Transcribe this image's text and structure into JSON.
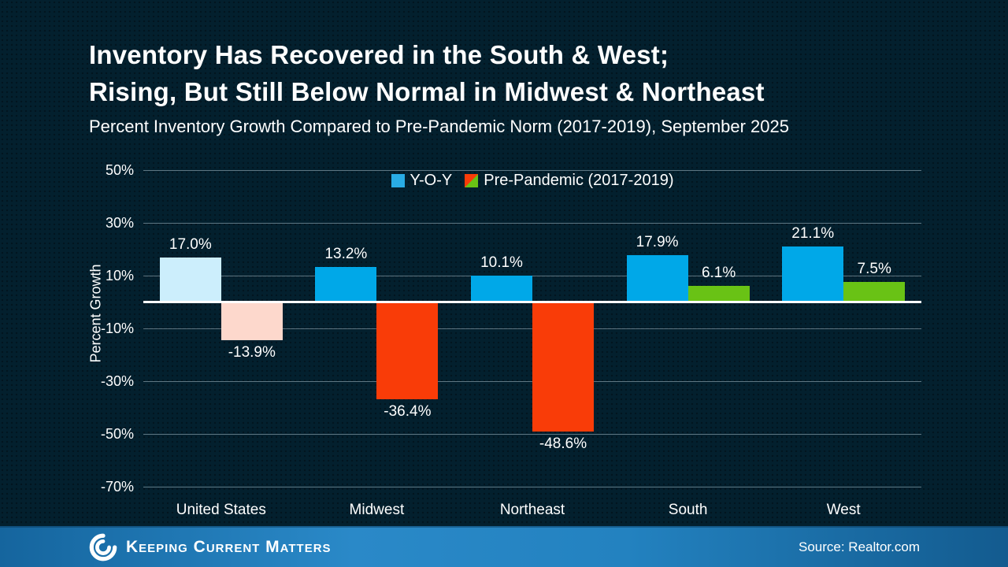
{
  "slide": {
    "title_line1": "Inventory Has Recovered in the South & West;",
    "title_line2": "Rising, But Still Below Normal in Midwest & Northeast",
    "subtitle": "Percent Inventory Growth Compared to Pre-Pandemic Norm (2017-2019), September 2025",
    "brand": "Keeping Current Matters",
    "source": "Source: Realtor.com",
    "background_color": "#03202E",
    "footer_color": "#2382C0"
  },
  "chart_data": {
    "type": "bar",
    "title": "Inventory Has Recovered in the South & West; Rising, But Still Below Normal in Midwest & Northeast",
    "subtitle": "Percent Inventory Growth Compared to Pre-Pandemic Norm (2017-2019), September 2025",
    "categories": [
      "United States",
      "Midwest",
      "Northeast",
      "South",
      "West"
    ],
    "series": [
      {
        "name": "Y-O-Y",
        "values": [
          17.0,
          13.2,
          10.1,
          17.9,
          21.1
        ],
        "labels": [
          "17.0%",
          "13.2%",
          "10.1%",
          "17.9%",
          "21.1%"
        ],
        "colors": [
          "#CCEEFC",
          "#00A8E8",
          "#00A8E8",
          "#00A8E8",
          "#00A8E8"
        ],
        "swatch": {
          "type": "solid",
          "color": "#29ACE5"
        }
      },
      {
        "name": "Pre-Pandemic (2017-2019)",
        "values": [
          -13.9,
          -36.4,
          -48.6,
          6.1,
          7.5
        ],
        "labels": [
          "-13.9%",
          "-36.4%",
          "-48.6%",
          "6.1%",
          "7.5%"
        ],
        "colors": [
          "#FDD8CC",
          "#F93C08",
          "#F93C08",
          "#69C215",
          "#69C215"
        ],
        "swatch": {
          "type": "split",
          "upper": "#F93C08",
          "lower": "#69C215"
        }
      }
    ],
    "ylabel": "Percent Growth",
    "ylim": [
      -70,
      50
    ],
    "ytick_values": [
      50,
      30,
      10,
      -10,
      -30,
      -50,
      -70
    ],
    "ytick_labels": [
      "50%",
      "30%",
      "10%",
      "-10%",
      "-30%",
      "-50%",
      "-70%"
    ],
    "grid": true,
    "legend_position": "top-center",
    "zero_line_color": "#FFFFFF",
    "gridline_color": "#AABEC8"
  }
}
